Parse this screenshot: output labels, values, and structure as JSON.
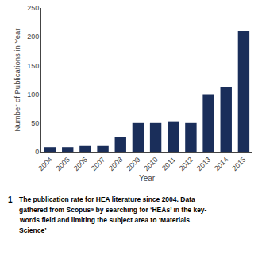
{
  "chart_data": {
    "type": "bar",
    "categories": [
      "2004",
      "2005",
      "2006",
      "2007",
      "2008",
      "2009",
      "2010",
      "2011",
      "2012",
      "2013",
      "2014",
      "2015"
    ],
    "values": [
      8,
      8,
      10,
      10,
      25,
      50,
      50,
      53,
      50,
      100,
      113,
      210
    ],
    "color": "#1a2e5a",
    "xlabel": "Year",
    "ylabel": "Number of Publications in Year",
    "ylim": [
      0,
      250
    ],
    "yticks": [
      0,
      50,
      100,
      150,
      200,
      250
    ],
    "grid": false,
    "annotations": [
      "1",
      "The publication rate for HEA literature since 2004. Data",
      "gathered from Scopus⁹ by searching for ‘HEAs’ in the key-",
      "words field and limiting the subject area to ‘Materials",
      "Science’"
    ]
  }
}
